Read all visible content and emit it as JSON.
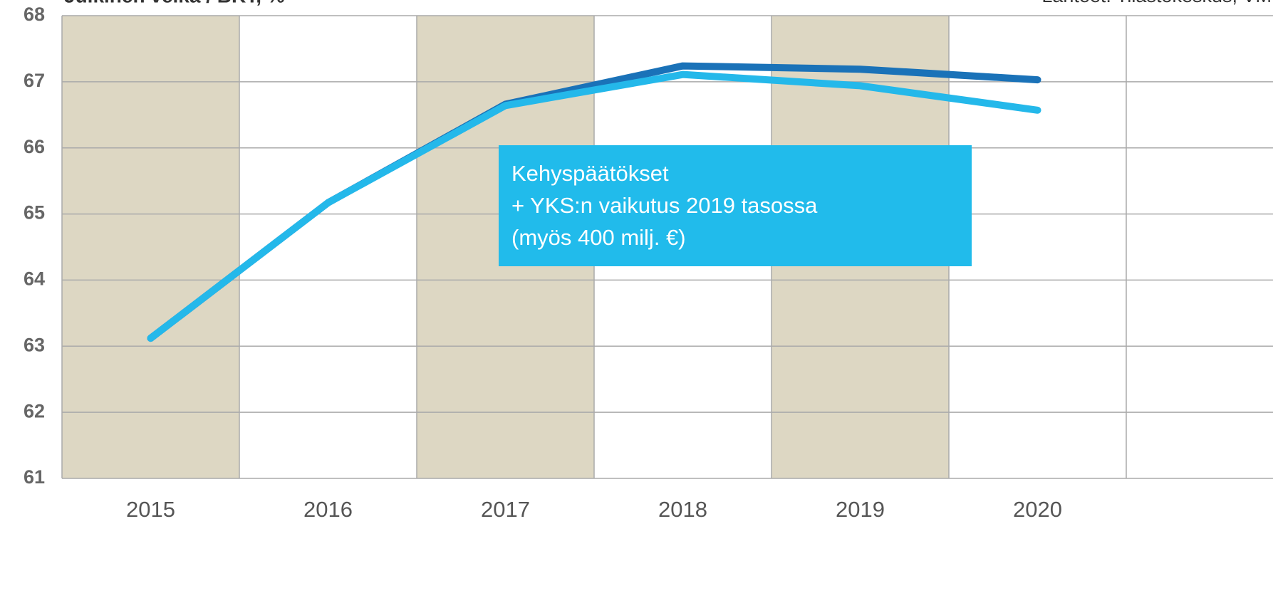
{
  "chart_data": {
    "type": "line",
    "title": "Julkinen velka / BKT, %",
    "source": "Lähteet: Tilastokeskus, VM",
    "categories": [
      "2015",
      "2016",
      "2017",
      "2018",
      "2019",
      "2020"
    ],
    "series": [
      {
        "color": "#1a72b8",
        "values": [
          63.12,
          65.17,
          66.66,
          67.24,
          67.19,
          67.03
        ]
      },
      {
        "color": "#24b8ea",
        "values": [
          63.12,
          65.17,
          66.64,
          67.11,
          66.94,
          66.57
        ]
      }
    ],
    "ylim": [
      61,
      68
    ],
    "yticks": [
      61,
      62,
      63,
      64,
      65,
      66,
      67,
      68
    ],
    "grid": true,
    "band_color": "#ddd7c3",
    "annotation": {
      "lines": [
        "Kehyspäätökset",
        "+ YKS:n vaikutus 2019 tasossa",
        "(myös 400 milj. €)"
      ],
      "color": "#21bbeb"
    }
  }
}
